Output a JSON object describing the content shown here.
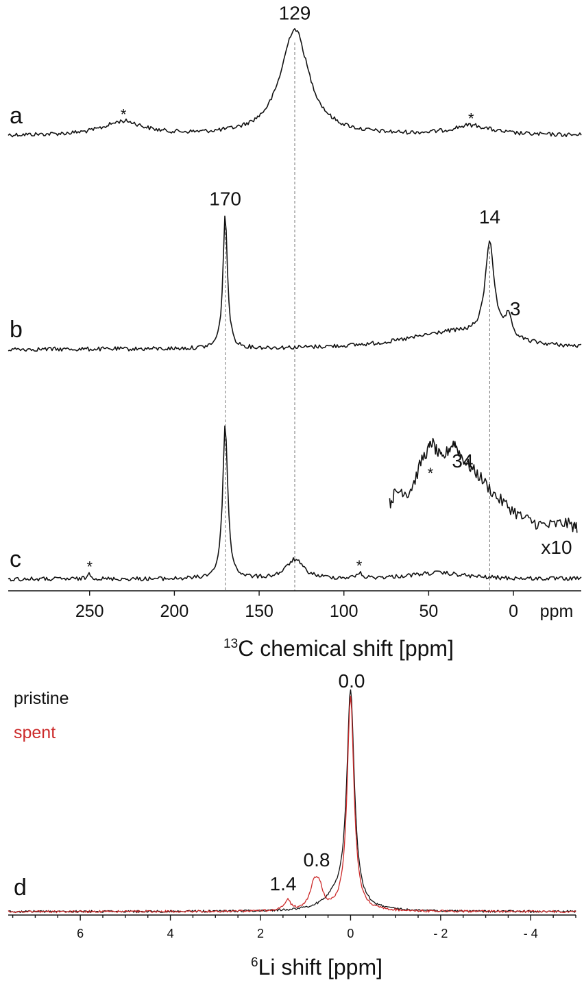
{
  "chart_data": [
    {
      "type": "line",
      "xlabel": "13C chemical shift [ppm]",
      "xlabel_parts": {
        "sup": "13",
        "text": "C chemical shift [ppm]"
      },
      "xlim": [
        298,
        -40
      ],
      "x_reversed": true,
      "ticks": [
        250,
        200,
        150,
        100,
        50,
        0
      ],
      "tick_labels": [
        "250",
        "200",
        "150",
        "100",
        "50",
        "0"
      ],
      "unit_label": "ppm",
      "guide_lines_ppm": [
        170,
        129,
        14
      ],
      "panels": [
        {
          "letter": "a",
          "baseline": 198,
          "peak_labels": [
            {
              "ppm": 129,
              "text": "129"
            }
          ],
          "sideband_markers": [
            230,
            25
          ],
          "star": "*",
          "peaks": [
            {
              "ppm": 129,
              "height": 155,
              "width": 10
            },
            {
              "ppm": 230,
              "height": 20,
              "width": 14
            },
            {
              "ppm": 25,
              "height": 14,
              "width": 14
            }
          ]
        },
        {
          "letter": "b",
          "baseline": 510,
          "peak_labels": [
            {
              "ppm": 170,
              "text": "170"
            },
            {
              "ppm": 14,
              "text": "14"
            },
            {
              "ppm": 3,
              "text": "3"
            }
          ],
          "sideband_markers": [],
          "peaks": [
            {
              "ppm": 170,
              "height": 195,
              "width": 1.6
            },
            {
              "ppm": 14,
              "height": 140,
              "width": 3.2
            },
            {
              "ppm": 3,
              "height": 30,
              "width": 2.5
            },
            {
              "ppm": 35,
              "height": 25,
              "width": 35
            }
          ]
        },
        {
          "letter": "c",
          "baseline": 845,
          "peak_labels": [
            {
              "ppm": 34,
              "text": "34"
            }
          ],
          "sideband_markers": [
            250,
            91,
            49
          ],
          "star": "*",
          "scale_label": "x10",
          "peaks": [
            {
              "ppm": 170,
              "height": 225,
              "width": 1.8
            },
            {
              "ppm": 129,
              "height": 28,
              "width": 6
            },
            {
              "ppm": 250,
              "height": 8,
              "width": 1.5
            },
            {
              "ppm": 91,
              "height": 8,
              "width": 1.5
            },
            {
              "ppm": 45,
              "height": 9,
              "width": 20
            }
          ],
          "inset_x10": {
            "x_range": [
              73,
              -38
            ],
            "points_ppm_height": [
              [
                73,
                60
              ],
              [
                70,
                75
              ],
              [
                66,
                80
              ],
              [
                62,
                75
              ],
              [
                58,
                95
              ],
              [
                54,
                125
              ],
              [
                50,
                140
              ],
              [
                48,
                150
              ],
              [
                45,
                135
              ],
              [
                42,
                125
              ],
              [
                38,
                140
              ],
              [
                35,
                150
              ],
              [
                32,
                135
              ],
              [
                28,
                120
              ],
              [
                24,
                110
              ],
              [
                20,
                100
              ],
              [
                15,
                85
              ],
              [
                10,
                70
              ],
              [
                5,
                60
              ],
              [
                0,
                50
              ],
              [
                -5,
                40
              ],
              [
                -10,
                35
              ],
              [
                -15,
                30
              ],
              [
                -20,
                28
              ],
              [
                -25,
                30
              ],
              [
                -30,
                32
              ],
              [
                -35,
                28
              ],
              [
                -38,
                25
              ]
            ]
          }
        }
      ]
    },
    {
      "type": "line",
      "panel_letter": "d",
      "xlabel": "6Li shift [ppm]",
      "xlabel_parts": {
        "sup": "6",
        "text": "Li shift [ppm]"
      },
      "xlim": [
        7.6,
        -5.0
      ],
      "x_reversed": true,
      "ticks": [
        6,
        4,
        2,
        0,
        -2,
        -4
      ],
      "tick_labels": [
        "6",
        "4",
        "2",
        "0",
        "- 2",
        "- 4"
      ],
      "peak_labels": [
        {
          "ppm": 0.0,
          "text": "0.0"
        },
        {
          "ppm": 0.8,
          "text": "0.8"
        },
        {
          "ppm": 1.4,
          "text": "1.4"
        }
      ],
      "series": [
        {
          "name": "pristine",
          "color": "#111111",
          "peaks": [
            {
              "ppm": 0.0,
              "height": 315,
              "width": 0.1
            },
            {
              "ppm": 0.3,
              "height": 18,
              "width": 0.35
            }
          ]
        },
        {
          "name": "spent",
          "color": "#cc2a2a",
          "peaks": [
            {
              "ppm": 0.0,
              "height": 315,
              "width": 0.09
            },
            {
              "ppm": 0.8,
              "height": 40,
              "width": 0.12
            },
            {
              "ppm": 0.68,
              "height": 20,
              "width": 0.08
            },
            {
              "ppm": 1.4,
              "height": 15,
              "width": 0.08
            }
          ]
        }
      ]
    }
  ]
}
